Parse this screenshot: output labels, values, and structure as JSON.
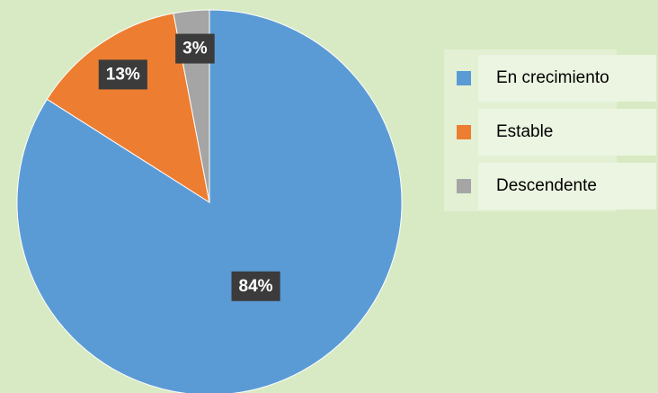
{
  "chart_data": {
    "type": "pie",
    "categories": [
      "En crecimiento",
      "Estable",
      "Descendente"
    ],
    "values": [
      84,
      13,
      3
    ],
    "value_labels": [
      "84%",
      "13%",
      "3%"
    ],
    "colors": [
      "#5b9bd5",
      "#ed7d31",
      "#a5a5a5"
    ],
    "legend": "right"
  }
}
